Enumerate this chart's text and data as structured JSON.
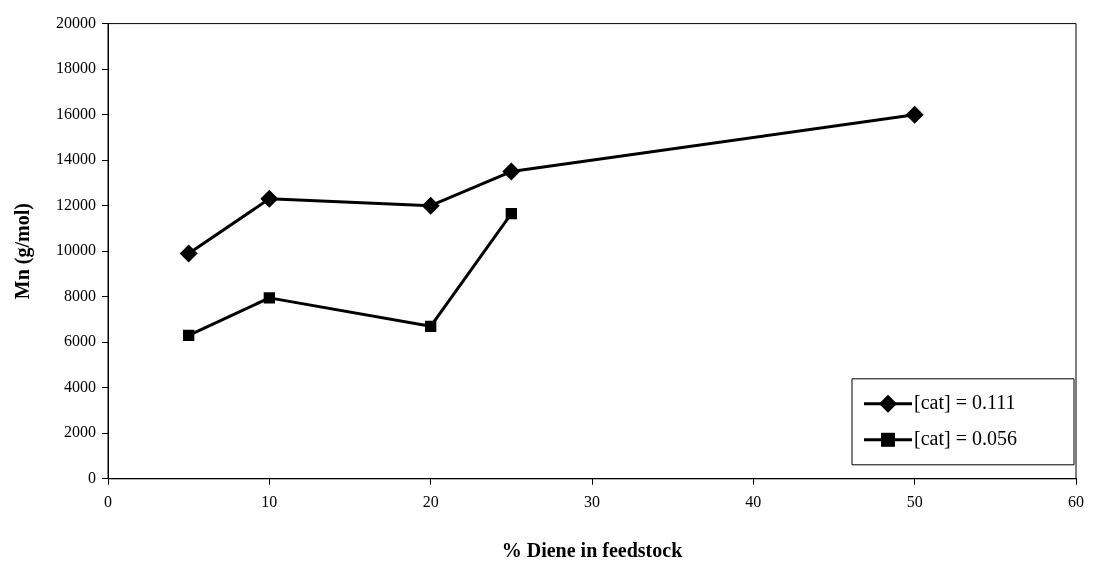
{
  "chart_data": {
    "type": "line",
    "xlabel": "% Diene in feedstock",
    "ylabel": "Mn (g/mol)",
    "xlim": [
      0,
      60
    ],
    "xticks": [
      0,
      10,
      20,
      30,
      40,
      50,
      60
    ],
    "ylim": [
      0,
      20000
    ],
    "yticks": [
      0,
      2000,
      4000,
      6000,
      8000,
      10000,
      12000,
      14000,
      16000,
      18000,
      20000
    ],
    "grid": false,
    "legend": "bottom right",
    "line_style": "solid",
    "series": [
      {
        "name": "[cat] = 0.111",
        "color": "#000000",
        "marker": "diamond",
        "x": [
          5,
          10,
          20,
          25,
          50
        ],
        "values": [
          9900,
          12300,
          12000,
          13500,
          16000
        ]
      },
      {
        "name": "[cat] = 0.056",
        "color": "#000000",
        "marker": "square",
        "x": [
          5,
          10,
          20,
          25
        ],
        "values": [
          6300,
          7950,
          6700,
          11650
        ]
      }
    ]
  }
}
